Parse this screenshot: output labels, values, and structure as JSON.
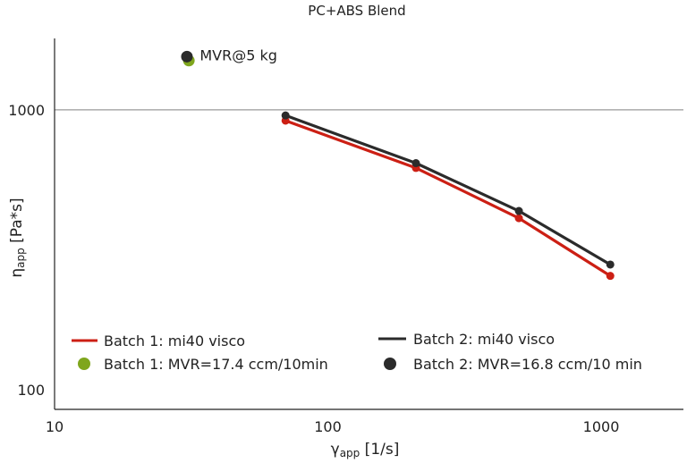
{
  "chart_data": {
    "type": "line",
    "title": "PC+ABS Blend",
    "xlabel": {
      "main": "γ",
      "sub": "app",
      "unit": " [1/s]"
    },
    "ylabel": {
      "main": "η",
      "sub": "app",
      "unit": " [Pa*s]"
    },
    "xscale": "log",
    "yscale": "log",
    "xlim": [
      10,
      2000
    ],
    "ylim": [
      85,
      1800
    ],
    "xticks": [
      10,
      100,
      1000
    ],
    "yticks": [
      100,
      1000
    ],
    "xtick_labels": [
      "10",
      "100",
      "1000"
    ],
    "ytick_labels": [
      "100",
      "1000"
    ],
    "gridlines_y": [
      1000
    ],
    "grid": "horizontal line at 1000 only",
    "legend_placement": "bottom",
    "series": [
      {
        "name": "Batch 1: mi40 visco",
        "kind": "line",
        "color": "#cc1f14",
        "x": [
          70,
          210,
          500,
          1080
        ],
        "y": [
          915,
          620,
          410,
          255
        ]
      },
      {
        "name": "Batch 2: mi40 visco",
        "kind": "line",
        "color": "#2b2b2b",
        "x": [
          70,
          210,
          500,
          1080
        ],
        "y": [
          955,
          645,
          435,
          280
        ]
      },
      {
        "name": "Batch 1: MVR=17.4 ccm/10min",
        "kind": "marker",
        "color": "#7fa61d",
        "x": [
          31
        ],
        "y": [
          1500
        ]
      },
      {
        "name": "Batch 2: MVR=16.8 ccm/10 min",
        "kind": "marker",
        "color": "#2b2b2b",
        "x": [
          30.5
        ],
        "y": [
          1550
        ]
      }
    ],
    "annotations": [
      {
        "text": "MVR@5 kg",
        "x": 34,
        "y": 1570
      }
    ]
  }
}
